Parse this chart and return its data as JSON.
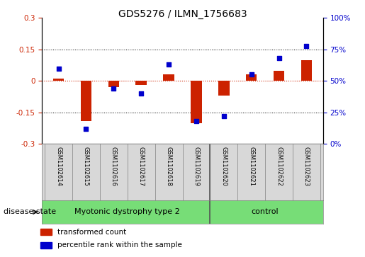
{
  "title": "GDS5276 / ILMN_1756683",
  "samples": [
    "GSM1102614",
    "GSM1102615",
    "GSM1102616",
    "GSM1102617",
    "GSM1102618",
    "GSM1102619",
    "GSM1102620",
    "GSM1102621",
    "GSM1102622",
    "GSM1102623"
  ],
  "red_values": [
    0.01,
    -0.19,
    -0.03,
    -0.02,
    0.03,
    -0.2,
    -0.07,
    0.03,
    0.05,
    0.1
  ],
  "blue_percentiles": [
    60,
    12,
    44,
    40,
    63,
    18,
    22,
    55,
    68,
    78
  ],
  "group1_label": "Myotonic dystrophy type 2",
  "group1_count": 6,
  "group2_label": "control",
  "group2_count": 4,
  "ylim_left": [
    -0.3,
    0.3
  ],
  "ylim_right": [
    0,
    100
  ],
  "yticks_left": [
    -0.3,
    -0.15,
    0.0,
    0.15,
    0.3
  ],
  "yticks_right": [
    0,
    25,
    50,
    75,
    100
  ],
  "red_color": "#cc2200",
  "blue_color": "#0000cc",
  "sample_bg": "#d8d8d8",
  "group_color": "#77dd77",
  "legend_red": "transformed count",
  "legend_blue": "percentile rank within the sample"
}
